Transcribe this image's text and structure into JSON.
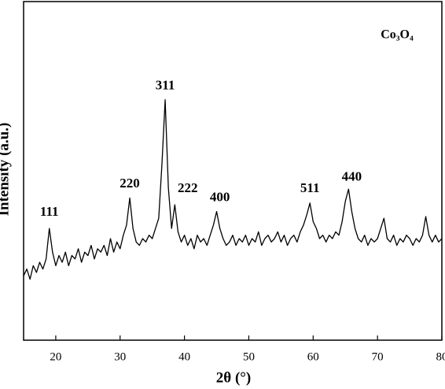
{
  "chart_data": {
    "type": "line",
    "x_label": "2θ (°)",
    "y_label": "Intensity (a.u.)",
    "legend_text": "Co₃O₄",
    "xlim": [
      15,
      80
    ],
    "xticks": [
      20,
      30,
      40,
      50,
      60,
      70,
      80
    ],
    "ylim": [
      0,
      100
    ],
    "x": [
      15,
      15.5,
      16,
      16.5,
      17,
      17.5,
      18,
      18.5,
      19,
      19.5,
      20,
      20.5,
      21,
      21.5,
      22,
      22.5,
      23,
      23.5,
      24,
      24.5,
      25,
      25.5,
      26,
      26.5,
      27,
      27.5,
      28,
      28.5,
      29,
      29.5,
      30,
      30.5,
      31,
      31.5,
      32,
      32.5,
      33,
      33.5,
      34,
      34.5,
      35,
      35.5,
      36,
      36.5,
      37,
      37.5,
      38,
      38.5,
      39,
      39.5,
      40,
      40.5,
      41,
      41.5,
      42,
      42.5,
      43,
      43.5,
      44,
      44.5,
      45,
      45.5,
      46,
      46.5,
      47,
      47.5,
      48,
      48.5,
      49,
      49.5,
      50,
      50.5,
      51,
      51.5,
      52,
      52.5,
      53,
      53.5,
      54,
      54.5,
      55,
      55.5,
      56,
      56.5,
      57,
      57.5,
      58,
      58.5,
      59,
      59.5,
      60,
      60.5,
      61,
      61.5,
      62,
      62.5,
      63,
      63.5,
      64,
      64.5,
      65,
      65.5,
      66,
      66.5,
      67,
      67.5,
      68,
      68.5,
      69,
      69.5,
      70,
      70.5,
      71,
      71.5,
      72,
      72.5,
      73,
      73.5,
      74,
      74.5,
      75,
      75.5,
      76,
      76.5,
      77,
      77.5,
      78,
      78.5,
      79,
      79.5,
      80
    ],
    "series": [
      {
        "color": "#000000",
        "values": [
          19,
          21,
          18,
          22,
          20,
          23,
          21,
          24,
          33,
          26,
          22,
          25,
          23,
          26,
          22,
          25,
          24,
          27,
          23,
          26,
          25,
          28,
          24,
          27,
          26,
          28,
          25,
          30,
          26,
          29,
          27,
          31,
          34,
          42,
          33,
          29,
          28,
          30,
          29,
          31,
          30,
          33,
          36,
          52,
          71,
          45,
          33,
          40,
          32,
          29,
          31,
          28,
          30,
          27,
          31,
          29,
          30,
          28,
          31,
          34,
          38,
          33,
          30,
          28,
          29,
          31,
          28,
          30,
          29,
          31,
          28,
          30,
          29,
          32,
          28,
          30,
          31,
          29,
          30,
          32,
          29,
          31,
          28,
          30,
          31,
          29,
          32,
          34,
          37,
          40.5,
          35,
          33,
          30,
          31,
          29,
          31,
          30,
          32,
          31,
          35,
          41,
          44.6,
          38,
          33,
          30,
          29,
          31,
          28,
          30,
          29,
          30,
          33,
          36,
          30,
          29,
          31,
          28,
          30,
          29,
          31,
          30,
          28,
          30,
          29,
          31,
          36.5,
          31,
          29,
          31,
          29,
          30
        ]
      }
    ],
    "annotations": [
      {
        "text": "111",
        "x": 19,
        "y": 37.7
      },
      {
        "text": "220",
        "x": 31.5,
        "y": 46
      },
      {
        "text": "311",
        "x": 37,
        "y": 75
      },
      {
        "text": "222",
        "x": 40.5,
        "y": 44.6
      },
      {
        "text": "400",
        "x": 45.5,
        "y": 42
      },
      {
        "text": "511",
        "x": 59.5,
        "y": 44.6
      },
      {
        "text": "440",
        "x": 66,
        "y": 48
      }
    ]
  }
}
